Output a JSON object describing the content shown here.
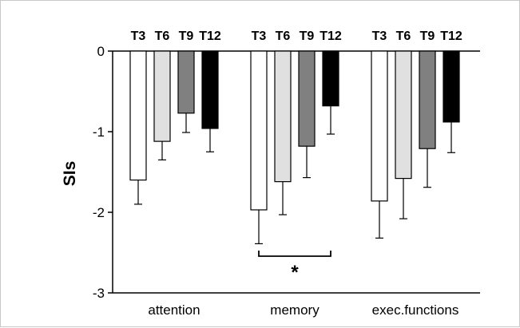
{
  "chart_data": {
    "type": "bar",
    "ylabel": "SIs",
    "ylim": [
      -3,
      0
    ],
    "yticks": [
      0,
      -1,
      -2,
      -3
    ],
    "categories": [
      "attention",
      "memory",
      "exec.functions"
    ],
    "series": [
      {
        "name": "T3",
        "color": "#ffffff",
        "values": [
          -1.6,
          -1.97,
          -1.86
        ],
        "errors": [
          0.3,
          0.42,
          0.46
        ]
      },
      {
        "name": "T6",
        "color": "#e0e0e0",
        "values": [
          -1.12,
          -1.62,
          -1.58
        ],
        "errors": [
          0.23,
          0.41,
          0.5
        ]
      },
      {
        "name": "T9",
        "color": "#808080",
        "values": [
          -0.77,
          -1.18,
          -1.21
        ],
        "errors": [
          0.24,
          0.39,
          0.48
        ]
      },
      {
        "name": "T12",
        "color": "#000000",
        "values": [
          -0.96,
          -0.68,
          -0.88
        ],
        "errors": [
          0.29,
          0.35,
          0.38
        ]
      }
    ],
    "annotations": [
      {
        "text": "*",
        "category": "memory",
        "from_series": "T3",
        "to_series": "T12"
      }
    ],
    "grid": false
  }
}
